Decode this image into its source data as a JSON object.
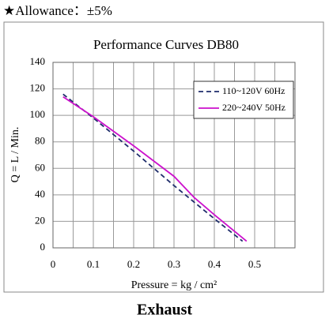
{
  "header": "★Allowance：±5%",
  "chart_data": {
    "type": "line",
    "title": "Performance Curves DB80",
    "x_label": "Pressure = kg / cm²",
    "y_label": "Q = L / Min.",
    "xlim": [
      0,
      0.6
    ],
    "xticks": [
      0,
      0.1,
      0.2,
      0.3,
      0.4,
      0.5
    ],
    "xminor": [
      0.05,
      0.15,
      0.25,
      0.35,
      0.45,
      0.55
    ],
    "ylim": [
      0,
      140
    ],
    "yticks": [
      0,
      20,
      40,
      60,
      80,
      100,
      120,
      140
    ],
    "grid": true,
    "legend": "upper right",
    "series": [
      {
        "name": "110~120V 60Hz",
        "color": "#1f2d6b",
        "dash": true,
        "x": [
          0.025,
          0.1,
          0.2,
          0.3,
          0.4,
          0.47
        ],
        "values": [
          116,
          98,
          73,
          47,
          22,
          5
        ]
      },
      {
        "name": "220~240V 50Hz",
        "color": "#cc11cc",
        "dash": false,
        "x": [
          0.025,
          0.1,
          0.2,
          0.3,
          0.35,
          0.4,
          0.48
        ],
        "values": [
          114,
          99,
          77,
          54,
          38,
          25,
          5
        ]
      }
    ]
  },
  "footer": "Exhaust"
}
